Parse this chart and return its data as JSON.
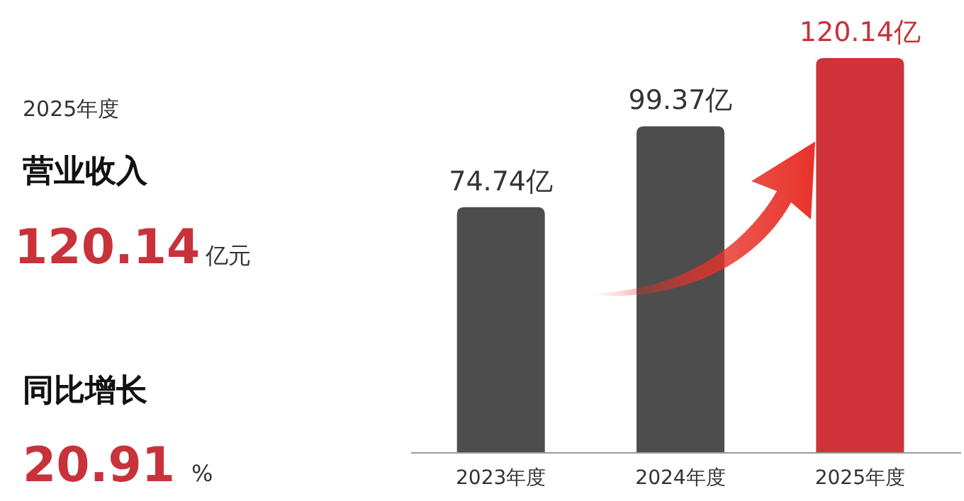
{
  "chart_data": [
    {
      "type": "other",
      "annotations": [
        "2025年度",
        "营业收入",
        "120.14",
        "亿元",
        "同比增长",
        "20.91",
        "%"
      ]
    },
    {
      "type": "bar",
      "categories": [
        "2023年度",
        "2024年度",
        "2025年度"
      ],
      "values": [
        74.74,
        99.37,
        120.14
      ],
      "colors": [
        "#4d4d4d",
        "#4d4d4d",
        "#cf3239"
      ],
      "value_labels": [
        "74.74亿",
        "99.37亿",
        "120.14亿"
      ]
    }
  ]
}
